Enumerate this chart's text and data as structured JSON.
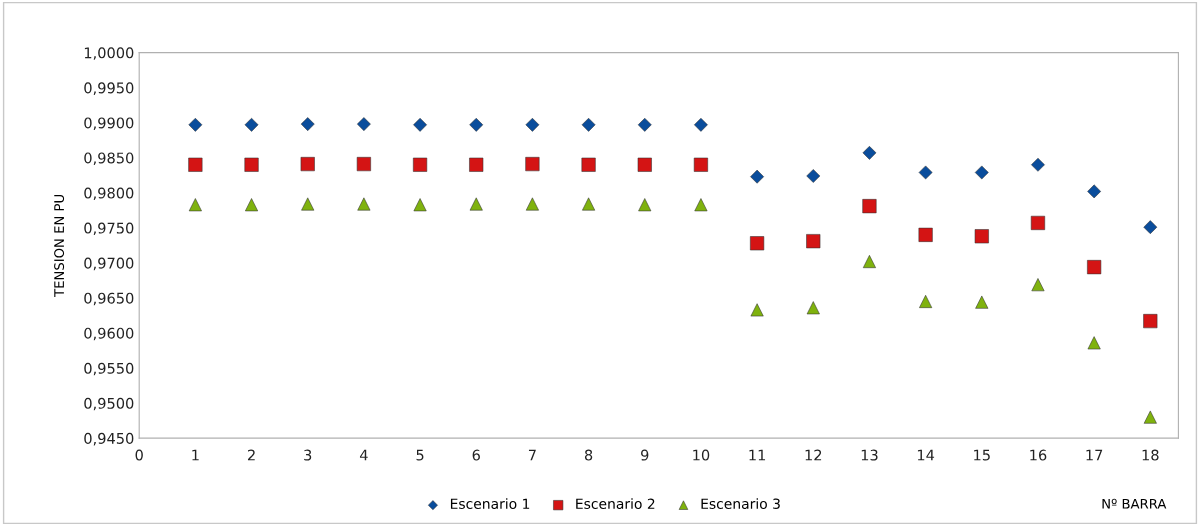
{
  "chart_data": {
    "type": "scatter",
    "ylabel": "TENSION EN PU",
    "xlabel": "Nº BARRA",
    "x": [
      1,
      2,
      3,
      4,
      5,
      6,
      7,
      8,
      9,
      10,
      11,
      12,
      13,
      14,
      15,
      16,
      17,
      18
    ],
    "series": [
      {
        "name": "Escenario 1",
        "color": "#0a4d9c",
        "marker": "diamond",
        "values": [
          0.9897,
          0.9897,
          0.9898,
          0.9898,
          0.9897,
          0.9897,
          0.9897,
          0.9897,
          0.9897,
          0.9897,
          0.9823,
          0.9824,
          0.9857,
          0.9829,
          0.9829,
          0.984,
          0.9802,
          0.9751
        ]
      },
      {
        "name": "Escenario 2",
        "color": "#d41414",
        "marker": "square",
        "values": [
          0.984,
          0.984,
          0.9841,
          0.9841,
          0.984,
          0.984,
          0.9841,
          0.984,
          0.984,
          0.984,
          0.9728,
          0.9731,
          0.9781,
          0.974,
          0.9738,
          0.9757,
          0.9694,
          0.9617
        ]
      },
      {
        "name": "Escenario 3",
        "color": "#7fb20e",
        "marker": "triangle",
        "values": [
          0.9783,
          0.9783,
          0.9784,
          0.9784,
          0.9783,
          0.9784,
          0.9784,
          0.9784,
          0.9783,
          0.9783,
          0.9633,
          0.9636,
          0.9702,
          0.9645,
          0.9644,
          0.9669,
          0.9586,
          0.948
        ]
      }
    ],
    "xlim": [
      0,
      18.5
    ],
    "xticks": [
      0,
      1,
      2,
      3,
      4,
      5,
      6,
      7,
      8,
      9,
      10,
      11,
      12,
      13,
      14,
      15,
      16,
      17,
      18
    ],
    "ylim": [
      0.945,
      1.0
    ],
    "yticks": [
      {
        "value": 0.945,
        "label": "0,9450"
      },
      {
        "value": 0.95,
        "label": "0,9500"
      },
      {
        "value": 0.955,
        "label": "0,9550"
      },
      {
        "value": 0.96,
        "label": "0,9600"
      },
      {
        "value": 0.965,
        "label": "0,9650"
      },
      {
        "value": 0.97,
        "label": "0,9700"
      },
      {
        "value": 0.975,
        "label": "0,9750"
      },
      {
        "value": 0.98,
        "label": "0,9800"
      },
      {
        "value": 0.985,
        "label": "0,9850"
      },
      {
        "value": 0.99,
        "label": "0,9900"
      },
      {
        "value": 0.995,
        "label": "0,9950"
      },
      {
        "value": 1.0,
        "label": "1,0000"
      }
    ],
    "grid": false,
    "legend": "bottom"
  }
}
